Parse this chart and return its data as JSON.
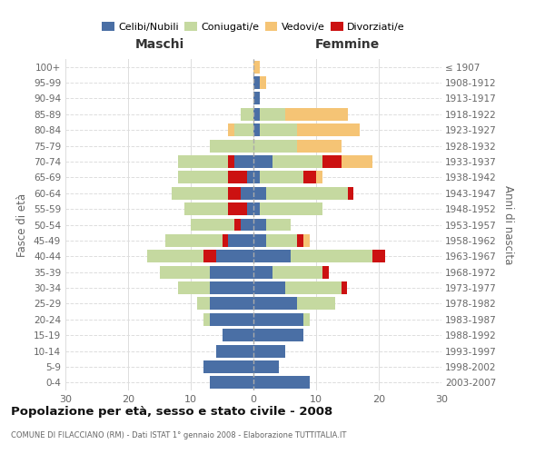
{
  "age_groups": [
    "0-4",
    "5-9",
    "10-14",
    "15-19",
    "20-24",
    "25-29",
    "30-34",
    "35-39",
    "40-44",
    "45-49",
    "50-54",
    "55-59",
    "60-64",
    "65-69",
    "70-74",
    "75-79",
    "80-84",
    "85-89",
    "90-94",
    "95-99",
    "100+"
  ],
  "birth_years": [
    "2003-2007",
    "1998-2002",
    "1993-1997",
    "1988-1992",
    "1983-1987",
    "1978-1982",
    "1973-1977",
    "1968-1972",
    "1963-1967",
    "1958-1962",
    "1953-1957",
    "1948-1952",
    "1943-1947",
    "1938-1942",
    "1933-1937",
    "1928-1932",
    "1923-1927",
    "1918-1922",
    "1913-1917",
    "1908-1912",
    "≤ 1907"
  ],
  "colors": {
    "celibi": "#4a6fa5",
    "coniugati": "#c5d9a0",
    "vedovi": "#f5c475",
    "divorziati": "#cc1111"
  },
  "maschi": {
    "celibi": [
      7,
      8,
      6,
      5,
      7,
      7,
      7,
      7,
      6,
      4,
      2,
      1,
      2,
      1,
      3,
      0,
      0,
      0,
      0,
      0,
      0
    ],
    "coniugati": [
      0,
      0,
      0,
      0,
      1,
      2,
      5,
      8,
      11,
      10,
      8,
      10,
      11,
      11,
      9,
      7,
      3,
      2,
      0,
      0,
      0
    ],
    "vedovi": [
      0,
      0,
      0,
      0,
      0,
      0,
      0,
      0,
      0,
      0,
      0,
      0,
      0,
      0,
      0,
      0,
      1,
      0,
      0,
      0,
      0
    ],
    "divorziati": [
      0,
      0,
      0,
      0,
      0,
      0,
      0,
      0,
      2,
      1,
      1,
      3,
      2,
      3,
      1,
      0,
      0,
      0,
      0,
      0,
      0
    ]
  },
  "femmine": {
    "celibi": [
      9,
      4,
      5,
      8,
      8,
      7,
      5,
      3,
      6,
      2,
      2,
      1,
      2,
      1,
      3,
      0,
      1,
      1,
      1,
      1,
      0
    ],
    "coniugati": [
      0,
      0,
      0,
      0,
      1,
      6,
      9,
      8,
      13,
      5,
      4,
      10,
      13,
      7,
      8,
      7,
      6,
      4,
      0,
      0,
      0
    ],
    "vedovi": [
      0,
      0,
      0,
      0,
      0,
      0,
      0,
      0,
      1,
      2,
      0,
      0,
      1,
      3,
      8,
      7,
      10,
      10,
      0,
      1,
      1
    ],
    "divorziati": [
      0,
      0,
      0,
      0,
      0,
      0,
      1,
      1,
      2,
      1,
      0,
      0,
      1,
      2,
      3,
      0,
      0,
      0,
      0,
      0,
      0
    ]
  },
  "xlim": 30,
  "title": "Popolazione per età, sesso e stato civile - 2008",
  "subtitle": "COMUNE DI FILACCIANO (RM) - Dati ISTAT 1° gennaio 2008 - Elaborazione TUTTITALIA.IT",
  "ylabel_left": "Fasce di età",
  "ylabel_right": "Anni di nascita",
  "label_maschi": "Maschi",
  "label_femmine": "Femmine",
  "legend_labels": [
    "Celibi/Nubili",
    "Coniugati/e",
    "Vedovi/e",
    "Divorziati/e"
  ],
  "bg_color": "#ffffff",
  "grid_color": "#dddddd",
  "text_color": "#666666",
  "title_color": "#111111"
}
